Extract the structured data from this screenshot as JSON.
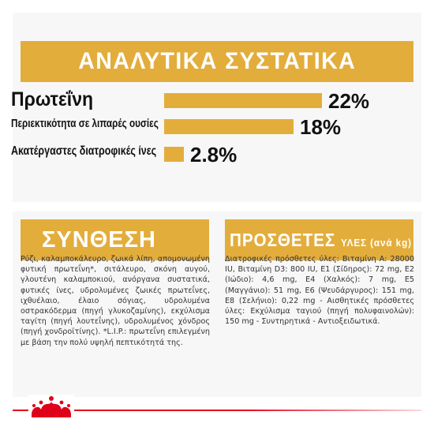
{
  "analytical": {
    "title": "ΑΝΑΛΥΤΙΚΑ ΣΥΣΤΑΤΙΚΑ",
    "rows": [
      {
        "label": "Πρωτεΐνη",
        "value": "22%",
        "level": 22
      },
      {
        "label": "Περιεκτικότητα σε λιπαρές ουσίες",
        "value": "18%",
        "level": 18
      },
      {
        "label": "Ακατέργαστες διατροφικές ίνες",
        "value": "2.8%",
        "level": 2.8
      }
    ]
  },
  "composition": {
    "title": "ΣΥΝΘΕΣΗ",
    "text": "Ρύζι, καλαμποκάλευρο, ζωικά λίπη, απομονωμένη φυτική πρωτεΐνη*, σιτάλευρο, σκόνη αυγού, γλουτένη καλαμποκιού, ανόργανα συστατικά, φυτικές ίνες, υδρολυμένες ζωικές πρωτεΐνες, ιχθυέλαιο, έλαιο σόγιας, υδρολυμένα οστρακόδερμα (πηγή γλυκοζαμίνης), εκχύλισμα ταγίτη (πηγή λουτεΐνης), υδρολυμένος χόνδρος (πηγή χονδροϊτίνης). *L.I.P.: πρωτεΐνη επιλεγμένη με βάση την πολύ υψηλή πεπτικότητά της."
  },
  "additives": {
    "title": "ΠΡΟΣΘΕΤΕΣ",
    "title_suffix": "ΥΛΕΣ (ανά kg)",
    "text": "Διατροφικές πρόσθετες ύλες: Βιταμίνη A: 28000 IU, Βιταμίνη D3: 800 IU, E1 (Σίδηρος): 72 mg, E2 (Ιώδιο): 4,6 mg, E4 (Χαλκός): 7 mg, E5 (Μαγγάνιο): 51 mg, E6 (Ψευδάργυρος): 151 mg, E8 (Σελήνιο): 0,22 mg - Αισθητικές πρόσθετες ύλες: Εκχύλισμα ταγιού (πηγή πολυφαινολών): 150 mg - Συντηρητικά - Αντιοξειδωτικά."
  },
  "colors": {
    "accent": "#e3ad3c",
    "brand_red": "#e1001a"
  },
  "icons": {
    "brand": "crown-icon"
  }
}
